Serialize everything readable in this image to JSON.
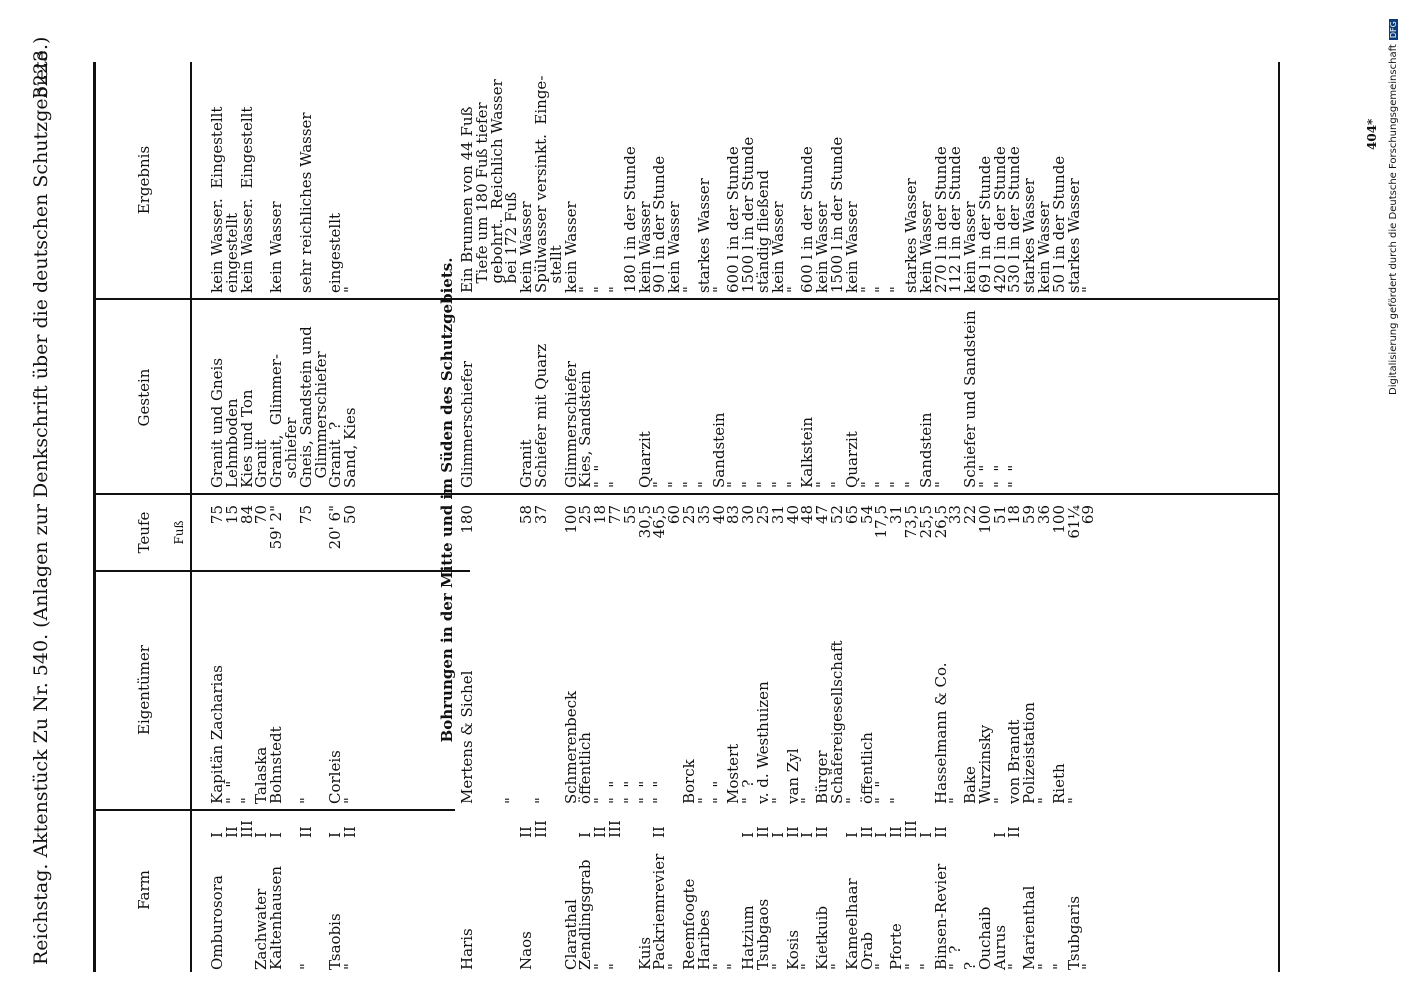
{
  "header": {
    "left": "Reichstag. Aktenstück Zu Nr. 540. (Anlagen zur Denkschrift über die deutschen Schutzgebiete.)",
    "right": "3223"
  },
  "columns": {
    "farm": "Farm",
    "eigentuemer": "Eigentümer",
    "teufe": "Teufe",
    "teufe_unit": "Fuß",
    "gestein": "Gestein",
    "ergebnis": "Ergebnis"
  },
  "section1": {
    "farm": "Omburosora\n\n\nZachwater\nKaltenhausen\n\n\"\n\nTsaobis\n\"",
    "num": "I\nII\nIII\nI\nI\n\nII\n\nI\nII",
    "owner": "Kapitän Zacharias\n\"  \"\n\"\nTalaska\nBohnstedt\n\n\"\n\nCorleis\n\"",
    "teufe": "75\n15\n84\n70\n59' 2\"\n\n75\n\n20' 6\"\n50",
    "gestein": "Granit und Gneis\nLehmboden\nKies und Ton\nGranit\nGranit,  Glimmer-\n  schiefer\nGneis, Sandstein und\n  Glimmerschiefer\nGranit  ?\nSand, Kies",
    "ergebnis": "kein Wasser.  Eingestellt\neingestellt\nkein Wasser.  Eingestellt\n\nkein Wasser\n\nsehr reichliches Wasser\n\neingestellt\n\""
  },
  "section_title": "Bohrungen in der Mitte und im Süden des Schutzgebiets.",
  "section2": {
    "farm": "Haris\n\n\n\nNaos\n\n\nClarathal\nZendlingsgrab\n\"\n\"\n\nKuis\nPackriemrevier\n\"\nReemfoogte\nHaribes\n\"\n\"\nHatzium\nTsubgaos\n\"\nKosis\n\"\nKietkuib\n\"\nKameelhaar\nOrab\n\"\nPforte\n\"\n\"\nBinsen-Revier\n\"  ?\n?\nOuchaib\nAurus\n\"\nMarienthal\n\"\n\"\nTsubgaris\n\"",
    "num": "\n\n\n\nII\nIII\n\n\nI\nII\nIII\n\n\nII\n\n\n\n\n\nI\nII\nI\nII\nI\nII\n\nI\nII\nI\nII\nIII\nI\nII\n\n\n\nI\nII",
    "owner": "Mertens & Sichel\n\n\n\"\n\n\"\n\nSchmerenbeck\nöffentlich\n\"\n\"  \"\n\"  \"\n\"  \"\n\"  \"\n\nBorck\n\"\n\"  \"\nMostert\n\"  ?\nv. d. Westhuizen\n\"\nvan Zyl\n\"\nBürger\nSchäfereigesellschaft\n\"\nöffentlich\n\"  \"\n\"\n\n\nHasselmann & Co.\n\"\nBake\nWurzinsky\n\"\nvon Brandt\nPolizeistation\n\"\nRieth\n\"",
    "teufe": "180\n\n\n\n58\n37\n\n100\n25\n18\n77\n55\n30,5\n46,5\n60\n25\n35\n40\n83\n30\n25\n31\n40\n48\n47\n52\n65\n54\n17,5\n31\n73,5\n25,5\n26,5\n33\n22\n100\n51\n18\n59\n36\n100\n61¼\n69",
    "gestein": "Glimmerschiefer\n\n\n\nGranit\nSchiefer mit Quarz\n\nGlimmerschiefer\nKies, Sandstein\n\"  \"\n\"\n\nQuarzit\n\"\n\"\n\"\n\"\nSandstein\n\"\n\"\n\"\n\"\n\"\nKalkstein\n\"\n\"\nQuarzit\n\"\n\"\n\"\n\"\nSandstein\n\"\n\nSchiefer und Sandstein\n\"  \"\n\"  \"\n\"  \"",
    "ergebnis": "Ein Brunnen von 44 Fuß\n  Tiefe um 180 Fuß tiefer\n  gebohrt.  Reichlich Wasser\n  bei 172 Fuß\nkein Wasser\nSpülwasser versinkt.  Einge-\n  stellt\nkein Wasser\n\"\n\"\n\"\n180 l in der Stunde\nkein Wasser\n90 l in der Stunde\nkein Wasser\n\"\nstarkes Wasser\n\"\n600 l in der Stunde\n1500 l in der Stunde\nständig fließend\nkein Wasser\n\"\n600 l in der Stunde\nkein Wasser\n1500 l in der Stunde\nkein Wasser\n\"\n\"\n\"\nstarkes Wasser\nkein Wasser\n270 l in der Stunde\n112 l in der Stunde\nkein Wasser\n69 l in der Stunde\n420 l in der Stunde\n530 l in der Stunde\nstarkes Wasser\nkein Wasser\n50 l in der Stunde\nstarkes Wasser\n\""
  },
  "page_number": "404*",
  "footer_credit": "Digitalisierung gefördert durch die Deutsche Forschungsgemeinschaft",
  "dfg_logo": "DFG"
}
